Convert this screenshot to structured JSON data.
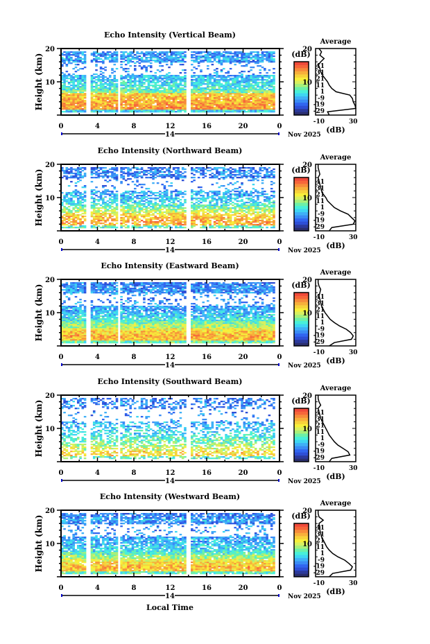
{
  "chart_data": {
    "type": "heatmap",
    "date_label": "Nov 2025",
    "day_label": "14",
    "xlabel": "Local Time",
    "ylabel": "Height (km)",
    "x_ticks": [
      "0",
      "4",
      "8",
      "12",
      "16",
      "20",
      "0"
    ],
    "x_range_hours": [
      0,
      24
    ],
    "y_ticks": [
      "20",
      "10"
    ],
    "y_range_km": [
      0,
      20
    ],
    "colorbar": {
      "label": "(dB)",
      "ticks": [
        "41",
        "31",
        "21",
        "11",
        "1",
        "-9",
        "-19",
        "-29"
      ],
      "range": [
        -29,
        46
      ],
      "colors": [
        "#2b2f6e",
        "#2c3a9c",
        "#2e4fd6",
        "#3166f0",
        "#3a8cf5",
        "#3fb0f7",
        "#3ed6f2",
        "#48f0d8",
        "#6cf0a8",
        "#a8f07a",
        "#d8f060",
        "#f7f03a",
        "#f7d23a",
        "#f7b03a",
        "#f78c3a",
        "#f7663a",
        "#f04a3a"
      ]
    },
    "data_gaps_hours": [
      3.0,
      6.3,
      14.0
    ],
    "average_panel": {
      "title": "Average",
      "xlabel": "(dB)",
      "x_ticks": [
        "-10",
        "30"
      ],
      "y_ticks": [
        "20",
        "10"
      ],
      "x_range": [
        -14,
        33
      ]
    },
    "panels": [
      {
        "title": "Echo Intensity (Vertical Beam)",
        "avg_profile_heights_km": [
          1,
          2,
          3,
          4,
          5,
          6,
          7,
          8,
          9,
          10,
          11,
          12,
          13,
          14,
          15,
          16,
          17,
          18,
          19,
          20
        ],
        "avg_profile_db": [
          0,
          33,
          32,
          30,
          29,
          26,
          10,
          5,
          2,
          0,
          -3,
          -6,
          -8,
          -9,
          -11,
          -8,
          -4,
          -9,
          -7,
          -10
        ],
        "fill": 0.8
      },
      {
        "title": "Echo Intensity (Northward Beam)",
        "avg_profile_heights_km": [
          1,
          2,
          3,
          4,
          5,
          6,
          7,
          8,
          9,
          10,
          11,
          12,
          13,
          14,
          15,
          16,
          17,
          18,
          19,
          20
        ],
        "avg_profile_db": [
          5,
          30,
          32,
          28,
          24,
          15,
          8,
          4,
          0,
          -2,
          -5,
          -7,
          -8,
          -9,
          -10,
          -11,
          -9,
          -10,
          -11,
          -11
        ],
        "fill": 0.6
      },
      {
        "title": "Echo Intensity (Eastward Beam)",
        "avg_profile_heights_km": [
          1,
          2,
          3,
          4,
          5,
          6,
          7,
          8,
          9,
          10,
          11,
          12,
          13,
          14,
          15,
          16,
          17,
          18,
          19,
          20
        ],
        "avg_profile_db": [
          8,
          28,
          30,
          27,
          22,
          14,
          8,
          3,
          0,
          -3,
          -5,
          -7,
          -8,
          -9,
          -10,
          -9,
          -8,
          -10,
          -11,
          -11
        ],
        "fill": 0.85
      },
      {
        "title": "Echo Intensity (Southward Beam)",
        "avg_profile_heights_km": [
          1,
          2,
          3,
          4,
          5,
          6,
          7,
          8,
          9,
          10,
          11,
          12,
          13,
          14,
          15,
          16,
          17,
          18,
          19,
          20
        ],
        "avg_profile_db": [
          5,
          26,
          24,
          18,
          12,
          8,
          5,
          2,
          0,
          -2,
          -4,
          -6,
          -8,
          -9,
          -10,
          -11,
          -8,
          -10,
          -11,
          -11
        ],
        "fill": 0.45
      },
      {
        "title": "Echo Intensity (Westward Beam)",
        "avg_profile_heights_km": [
          1,
          2,
          3,
          4,
          5,
          6,
          7,
          8,
          9,
          10,
          11,
          12,
          13,
          14,
          15,
          16,
          17,
          18,
          19,
          20
        ],
        "avg_profile_db": [
          6,
          27,
          29,
          25,
          20,
          12,
          6,
          2,
          -1,
          -3,
          -5,
          -7,
          -8,
          -9,
          -9,
          -10,
          -5,
          -10,
          -11,
          -11
        ],
        "fill": 0.8
      }
    ]
  }
}
